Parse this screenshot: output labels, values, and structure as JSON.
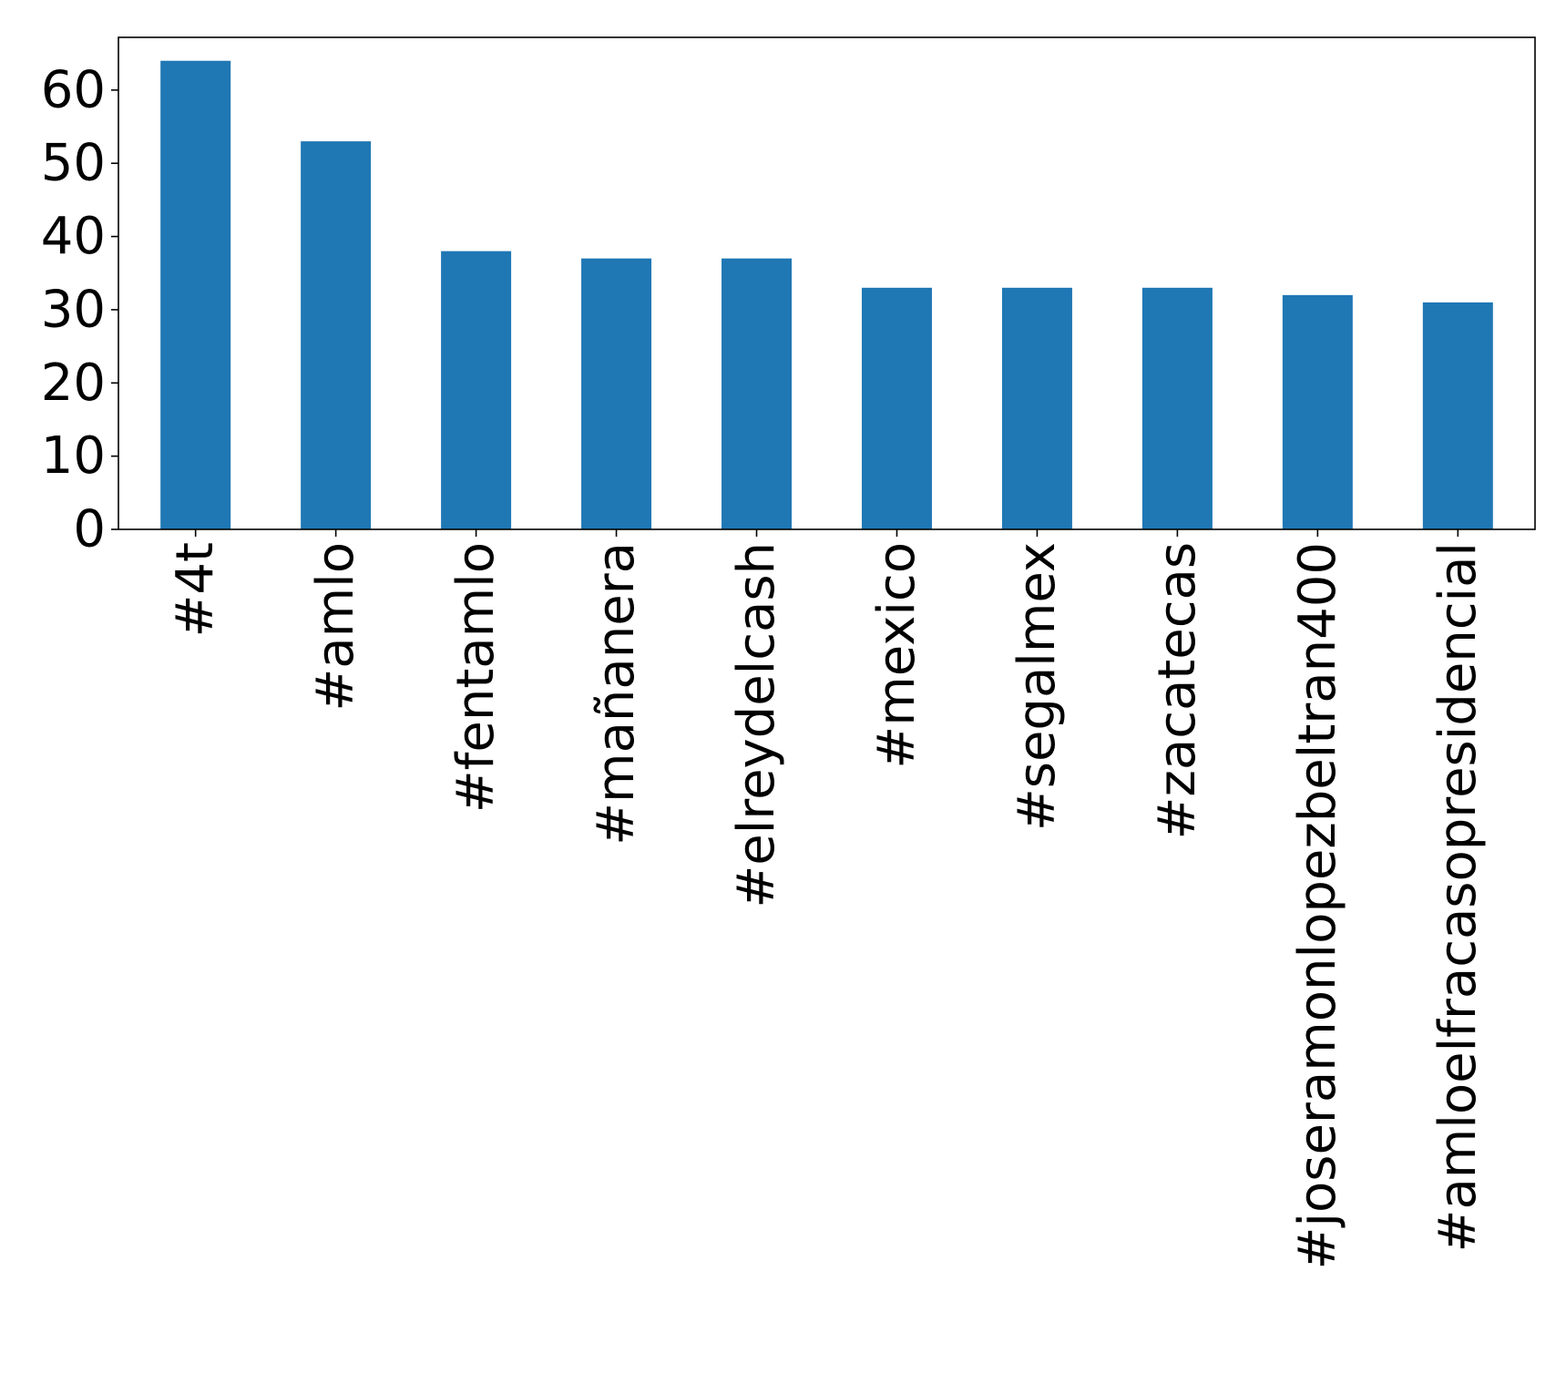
{
  "chart_data": {
    "type": "bar",
    "categories": [
      "#4t",
      "#amlo",
      "#fentamlo",
      "#mañanera",
      "#elreydelcash",
      "#mexico",
      "#segalmex",
      "#zacatecas",
      "#joseramonlopezbeltran400",
      "#amloelfracasopresidencial"
    ],
    "values": [
      64,
      53,
      38,
      37,
      37,
      33,
      33,
      33,
      32,
      31
    ],
    "title": "",
    "xlabel": "",
    "ylabel": "",
    "ylim": [
      0,
      67.2
    ],
    "yticks": [
      0,
      10,
      20,
      30,
      40,
      50,
      60
    ],
    "grid": false,
    "bar_color": "#1f77b4"
  }
}
